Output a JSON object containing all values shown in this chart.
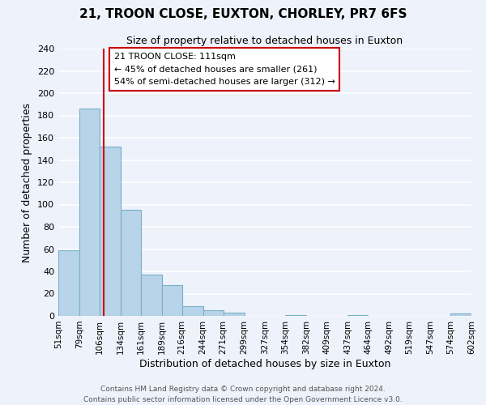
{
  "title": "21, TROON CLOSE, EUXTON, CHORLEY, PR7 6FS",
  "subtitle": "Size of property relative to detached houses in Euxton",
  "xlabel": "Distribution of detached houses by size in Euxton",
  "ylabel": "Number of detached properties",
  "bar_edges": [
    51,
    79,
    106,
    134,
    161,
    189,
    216,
    244,
    271,
    299,
    327,
    354,
    382,
    409,
    437,
    464,
    492,
    519,
    547,
    574,
    602
  ],
  "bar_heights": [
    59,
    186,
    152,
    95,
    37,
    28,
    9,
    5,
    3,
    0,
    0,
    1,
    0,
    0,
    1,
    0,
    0,
    0,
    0,
    2
  ],
  "bar_color": "#b8d4e8",
  "bar_edge_color": "#7aaec8",
  "vline_x": 111,
  "vline_color": "#cc0000",
  "annotation_title": "21 TROON CLOSE: 111sqm",
  "annotation_line1": "← 45% of detached houses are smaller (261)",
  "annotation_line2": "54% of semi-detached houses are larger (312) →",
  "ylim": [
    0,
    240
  ],
  "yticks": [
    0,
    20,
    40,
    60,
    80,
    100,
    120,
    140,
    160,
    180,
    200,
    220,
    240
  ],
  "tick_labels": [
    "51sqm",
    "79sqm",
    "106sqm",
    "134sqm",
    "161sqm",
    "189sqm",
    "216sqm",
    "244sqm",
    "271sqm",
    "299sqm",
    "327sqm",
    "354sqm",
    "382sqm",
    "409sqm",
    "437sqm",
    "464sqm",
    "492sqm",
    "519sqm",
    "547sqm",
    "574sqm",
    "602sqm"
  ],
  "footer_line1": "Contains HM Land Registry data © Crown copyright and database right 2024.",
  "footer_line2": "Contains public sector information licensed under the Open Government Licence v3.0.",
  "bg_color": "#eef2fb",
  "plot_bg_color": "#eef2fb",
  "grid_color": "#ffffff"
}
